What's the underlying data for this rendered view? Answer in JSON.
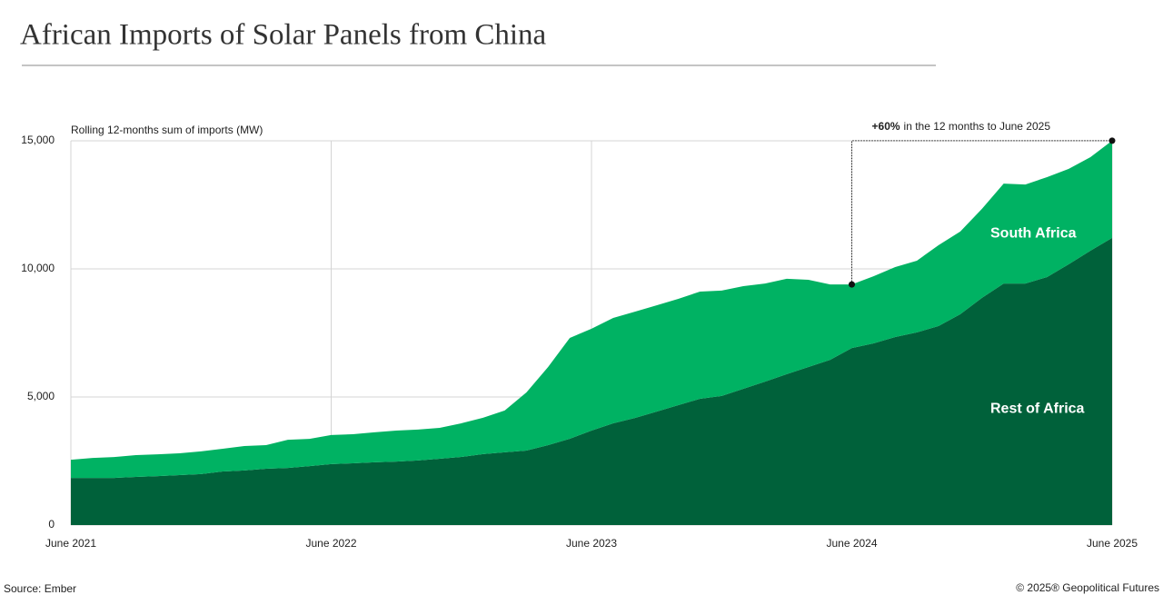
{
  "chart_data": {
    "type": "stacked_area",
    "title": "African Imports of Solar Panels from China",
    "y_axis_label": "Rolling 12-months sum of imports (MW)",
    "source": "Source: Ember",
    "copyright": "© 2025® Geopolitical Futures",
    "annotation": {
      "highlight": "+60%",
      "text": "in the 12 months to June 2025"
    },
    "categories": [
      "June 2021",
      null,
      null,
      null,
      null,
      null,
      null,
      null,
      null,
      null,
      null,
      null,
      "June 2022",
      null,
      null,
      null,
      null,
      null,
      null,
      null,
      null,
      null,
      null,
      null,
      "June 2023",
      null,
      null,
      null,
      null,
      null,
      null,
      null,
      null,
      null,
      null,
      null,
      "June 2024",
      null,
      null,
      null,
      null,
      null,
      null,
      null,
      null,
      null,
      null,
      null,
      "June 2025"
    ],
    "series": [
      {
        "name": "Rest of Africa",
        "color": "#00613a",
        "values": [
          1840,
          1840,
          1840,
          1880,
          1910,
          1950,
          1990,
          2090,
          2130,
          2200,
          2230,
          2300,
          2380,
          2410,
          2450,
          2480,
          2520,
          2590,
          2660,
          2770,
          2840,
          2910,
          3120,
          3370,
          3690,
          3970,
          4180,
          4430,
          4680,
          4930,
          5040,
          5320,
          5600,
          5890,
          6170,
          6450,
          6910,
          7090,
          7340,
          7520,
          7770,
          8230,
          8870,
          9430,
          9430,
          9680,
          10180,
          10710,
          11210
        ]
      },
      {
        "name": "South Africa",
        "color": "#00b263",
        "values": [
          709,
          780,
          816,
          851,
          851,
          851,
          887,
          887,
          957,
          922,
          1099,
          1064,
          1135,
          1135,
          1170,
          1206,
          1206,
          1206,
          1312,
          1418,
          1631,
          2269,
          3050,
          3936,
          3972,
          4113,
          4149,
          4149,
          4149,
          4184,
          4113,
          4007,
          3830,
          3723,
          3404,
          2943,
          2482,
          2624,
          2730,
          2801,
          3156,
          3227,
          3475,
          3901,
          3865,
          3901,
          3723,
          3652,
          3794
        ]
      }
    ],
    "ylim": [
      0,
      15000
    ],
    "yticks": [
      0,
      {
        "value": 5000,
        "label": "5,000"
      },
      {
        "value": 10000,
        "label": "10,000"
      },
      {
        "value": 15000,
        "label": "15,000"
      }
    ],
    "grid": true
  }
}
